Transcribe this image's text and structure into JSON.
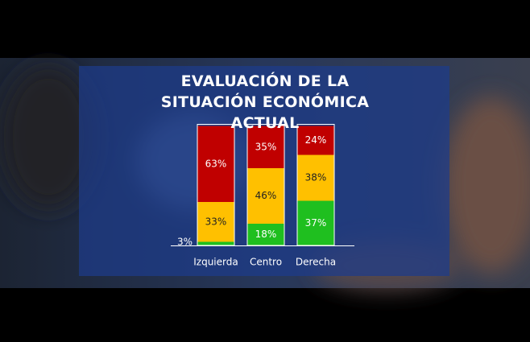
{
  "chart_data": {
    "type": "stacked-bar",
    "title": "EVALUACIÓN DE LA SITUACIÓN ECONÓMICA ACTUAL",
    "categories": [
      "Izquierda",
      "Centro",
      "Derecha"
    ],
    "ylim": [
      0,
      100
    ],
    "series": [
      {
        "color": "#1fbf1f",
        "label_color": "#ffffff",
        "values": [
          3,
          18,
          37
        ],
        "value_labels": [
          "3%",
          "18%",
          "37%"
        ]
      },
      {
        "color": "#ffc000",
        "label_color": "#222222",
        "values": [
          33,
          46,
          38
        ],
        "value_labels": [
          "33%",
          "46%",
          "38%"
        ]
      },
      {
        "color": "#c00000",
        "label_color": "#ffffff",
        "values": [
          63,
          35,
          24
        ],
        "value_labels": [
          "63%",
          "35%",
          "24%"
        ]
      }
    ]
  }
}
